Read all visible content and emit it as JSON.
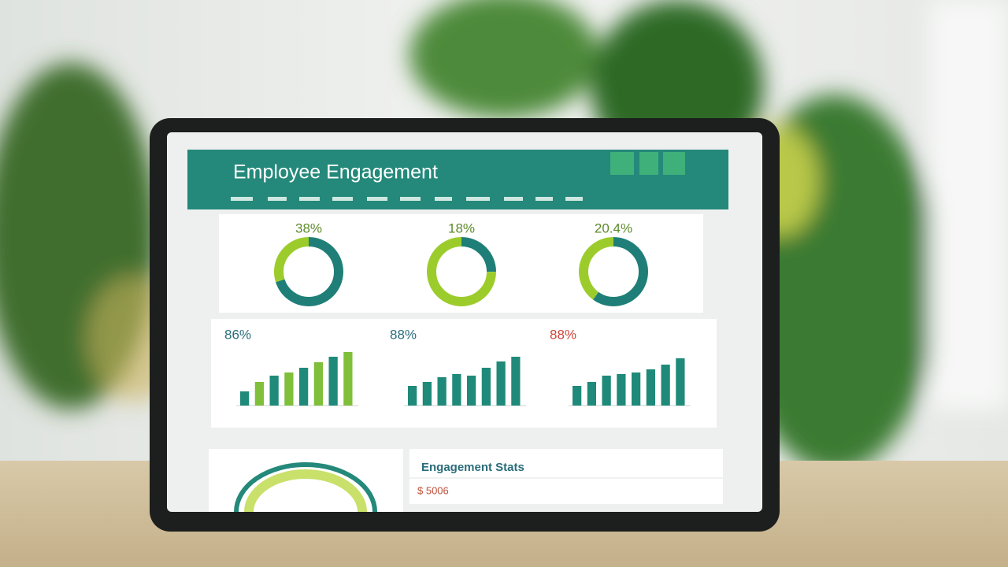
{
  "header": {
    "title": "Employee Engagement"
  },
  "donuts": [
    {
      "label": "38%",
      "values": [
        70,
        30
      ]
    },
    {
      "label": "18%",
      "values": [
        25,
        75
      ]
    },
    {
      "label": "20.4%",
      "values": [
        60,
        40
      ]
    }
  ],
  "bar_charts": [
    {
      "label": "86%",
      "ylim": [
        0,
        80
      ],
      "values": [
        18,
        30,
        38,
        42,
        48,
        55,
        62,
        68
      ]
    },
    {
      "label": "88%",
      "ylim": [
        0,
        80
      ],
      "values": [
        25,
        30,
        36,
        40,
        38,
        48,
        56,
        62
      ]
    },
    {
      "label": "88%",
      "ylim": [
        0,
        80
      ],
      "values": [
        25,
        30,
        38,
        40,
        42,
        46,
        52,
        60
      ]
    }
  ],
  "details": {
    "title": "Engagement Stats",
    "value": "$ 5006"
  }
}
